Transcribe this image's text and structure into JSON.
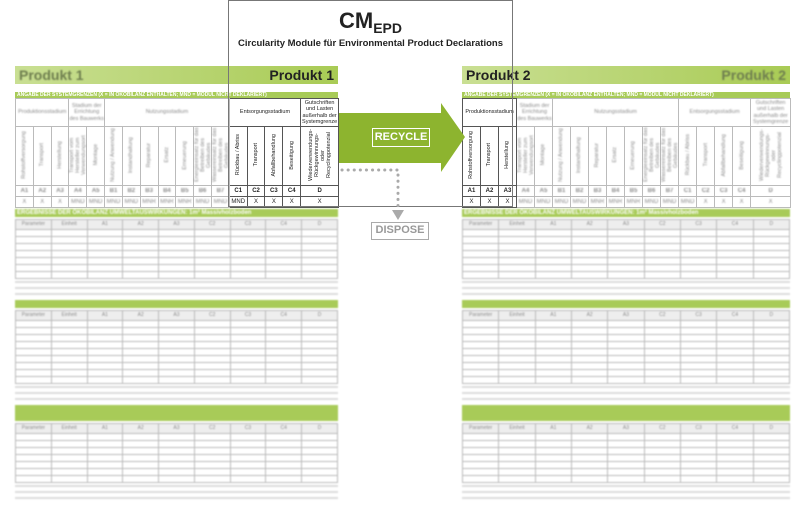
{
  "title": {
    "main": "CM",
    "sub": "EPD",
    "subtitle": "Circularity Module für Environmental Product Declarations"
  },
  "arrows": {
    "recycle_label": "RECYCLE",
    "dispose_label": "DISPOSE"
  },
  "colors": {
    "brand_green": "#8db42f",
    "band_green": "#a8cb58",
    "dispose_gray": "#aaaaaa"
  },
  "system_boundaries": {
    "band": "ANGABE DER SYSTEMGRENZEN (X = IN ÖKOBILANZ ENTHALTEN; MND = MODUL NICHT DEKLARIERT)",
    "stages": [
      {
        "label": "Produktionsstadium",
        "span": 3
      },
      {
        "label": "Stadium der Errichtung des Bauwerks",
        "span": 2
      },
      {
        "label": "Nutzungsstadium",
        "span": 7
      },
      {
        "label": "Entsorgungsstadium",
        "span": 4
      },
      {
        "label": "Gutschriften und Lasten außerhalb der Systemgrenze",
        "span": 1
      }
    ],
    "modules": [
      {
        "code": "A1",
        "name": "Rohstoffversorgung"
      },
      {
        "code": "A2",
        "name": "Transport"
      },
      {
        "code": "A3",
        "name": "Herstellung"
      },
      {
        "code": "A4",
        "name": "Transport vom Hersteller zum Verwendungsort"
      },
      {
        "code": "A5",
        "name": "Montage"
      },
      {
        "code": "B1",
        "name": "Nutzung / Anwendung"
      },
      {
        "code": "B2",
        "name": "Instandhaltung"
      },
      {
        "code": "B3",
        "name": "Reparatur"
      },
      {
        "code": "B4",
        "name": "Ersatz"
      },
      {
        "code": "B5",
        "name": "Erneuerung"
      },
      {
        "code": "B6",
        "name": "Energieeinsatz für das Betreiben des Gebäudes"
      },
      {
        "code": "B7",
        "name": "Wassereinsatz für das Betreiben des Gebäudes"
      },
      {
        "code": "C1",
        "name": "Rückbau / Abriss"
      },
      {
        "code": "C2",
        "name": "Transport"
      },
      {
        "code": "C3",
        "name": "Abfallbehandlung"
      },
      {
        "code": "C4",
        "name": "Beseitigung"
      },
      {
        "code": "D",
        "name": "Wiederverwendungs- Rückgewinnungs- oder Recyclingpotenzial"
      }
    ]
  },
  "products": [
    {
      "label": "Produkt 1",
      "values": [
        "X",
        "X",
        "X",
        "MND",
        "MND",
        "MND",
        "MND",
        "MNR",
        "MNR",
        "MNR",
        "MND",
        "MND",
        "MND",
        "X",
        "X",
        "X",
        "X"
      ]
    },
    {
      "label": "Produkt 2",
      "values": [
        "X",
        "X",
        "X",
        "MND",
        "MND",
        "MND",
        "MND",
        "MNR",
        "MNR",
        "MNR",
        "MND",
        "MND",
        "MND",
        "X",
        "X",
        "X",
        "X"
      ]
    }
  ],
  "results": {
    "band": "ERGEBNISSE DER ÖKOBILANZ UMWELTAUSWIRKUNGEN: 1m³ Massivholzboden",
    "columns": [
      "Parameter",
      "Einheit",
      "A1",
      "A2",
      "A3",
      "C2",
      "C3",
      "C4",
      "D"
    ]
  }
}
